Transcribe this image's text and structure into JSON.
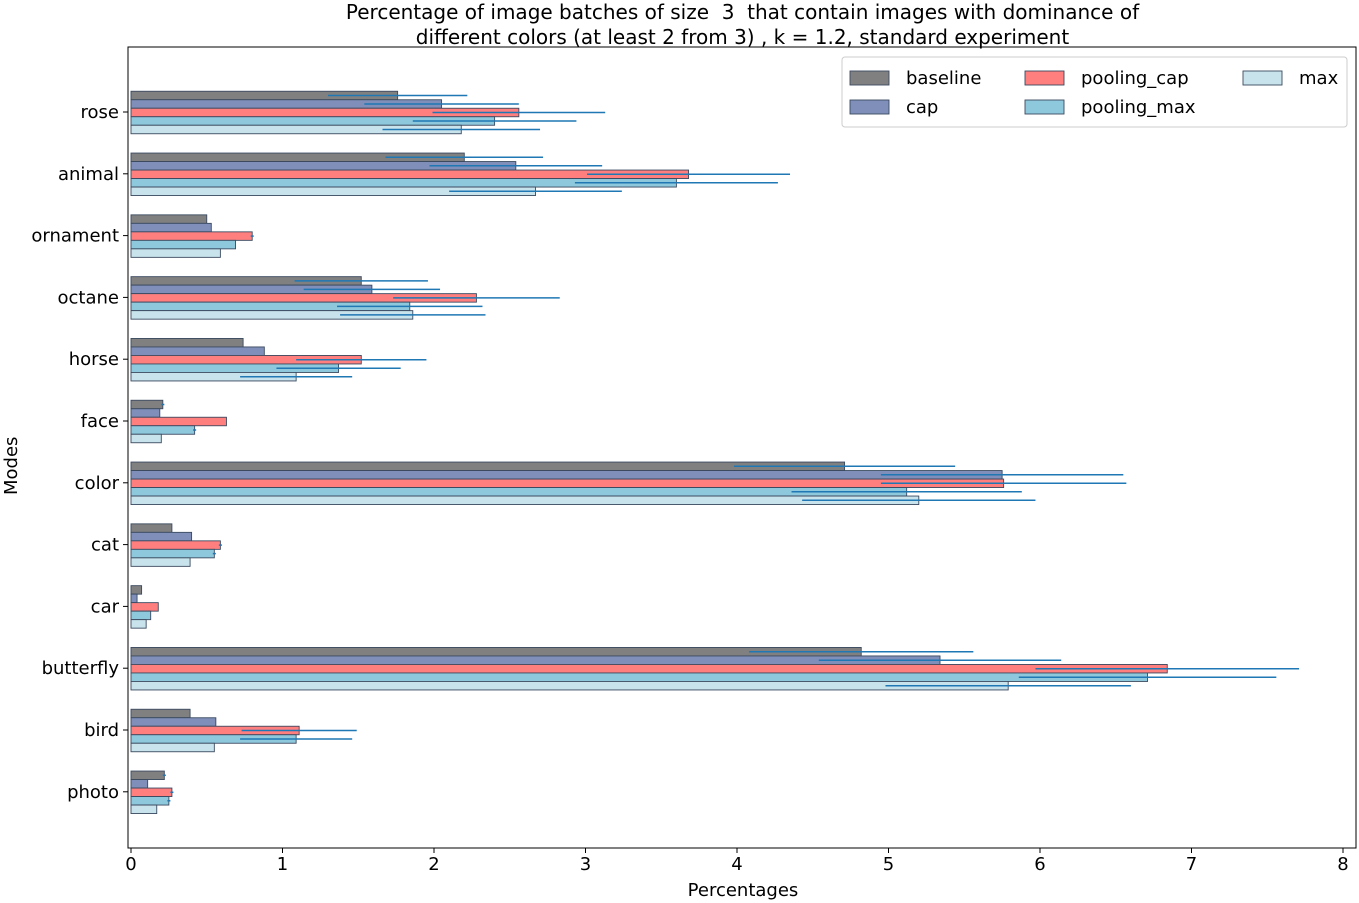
{
  "chart_data": {
    "type": "bar",
    "orientation": "horizontal",
    "title": [
      "Percentage of image batches of size  3  that contain images with dominance of",
      "different colors (at least 2 from 3) , k = 1.2, standard experiment"
    ],
    "xlabel": "Percentages",
    "ylabel": "Modes",
    "xlim": [
      0,
      8
    ],
    "xticks": [
      0,
      1,
      2,
      3,
      4,
      5,
      6,
      7,
      8
    ],
    "categories": [
      "rose",
      "animal",
      "ornament",
      "octane",
      "horse",
      "face",
      "color",
      "cat",
      "car",
      "butterfly",
      "bird",
      "photo"
    ],
    "series": [
      {
        "name": "baseline",
        "color": "#808080",
        "values": [
          1.76,
          2.2,
          0.5,
          1.52,
          0.74,
          0.21,
          4.71,
          0.27,
          0.07,
          4.82,
          0.39,
          0.22
        ],
        "errors": [
          0.46,
          0.52,
          0.0,
          0.44,
          0.0,
          0.01,
          0.73,
          0.0,
          0.0,
          0.74,
          0.0,
          0.01
        ]
      },
      {
        "name": "cap",
        "color": "#7f8fb9",
        "values": [
          2.05,
          2.54,
          0.53,
          1.59,
          0.88,
          0.19,
          5.75,
          0.4,
          0.04,
          5.34,
          0.56,
          0.11
        ],
        "errors": [
          0.51,
          0.57,
          0.0,
          0.45,
          0.0,
          0.0,
          0.8,
          0.0,
          0.0,
          0.8,
          0.0,
          0.0
        ]
      },
      {
        "name": "pooling_cap",
        "color": "#ff7f7f",
        "values": [
          2.56,
          3.68,
          0.8,
          2.28,
          1.52,
          0.63,
          5.76,
          0.59,
          0.18,
          6.84,
          1.11,
          0.27
        ],
        "errors": [
          0.57,
          0.67,
          0.01,
          0.55,
          0.43,
          0.0,
          0.81,
          0.01,
          0.0,
          0.87,
          0.38,
          0.01
        ]
      },
      {
        "name": "pooling_max",
        "color": "#8ec8dc",
        "values": [
          2.4,
          3.6,
          0.69,
          1.84,
          1.37,
          0.42,
          5.12,
          0.55,
          0.13,
          6.71,
          1.09,
          0.25
        ],
        "errors": [
          0.54,
          0.67,
          0.0,
          0.48,
          0.41,
          0.01,
          0.76,
          0.01,
          0.0,
          0.85,
          0.37,
          0.01
        ]
      },
      {
        "name": "max",
        "color": "#c9e3ec",
        "values": [
          2.18,
          2.67,
          0.59,
          1.86,
          1.09,
          0.2,
          5.2,
          0.39,
          0.1,
          5.79,
          0.55,
          0.17
        ],
        "errors": [
          0.52,
          0.57,
          0.0,
          0.48,
          0.37,
          0.0,
          0.77,
          0.0,
          0.0,
          0.81,
          0.0,
          0.0
        ]
      }
    ],
    "legend": {
      "position": "top-right",
      "columns": 3
    },
    "grid": false
  }
}
